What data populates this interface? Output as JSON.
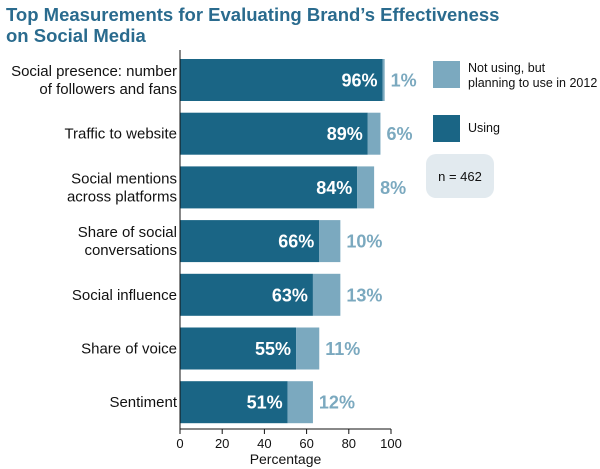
{
  "chart_data": {
    "type": "bar",
    "orientation": "horizontal",
    "stacked": true,
    "title_lines": [
      "Top Measurements for Evaluating Brand’s Effectiveness",
      "on Social Media"
    ],
    "categories": [
      [
        "Social presence: number",
        "of followers and fans"
      ],
      [
        "Traffic to website"
      ],
      [
        "Social mentions",
        "across platforms"
      ],
      [
        "Share of social",
        "conversations"
      ],
      [
        "Social influence"
      ],
      [
        "Share of voice"
      ],
      [
        "Sentiment"
      ]
    ],
    "series": [
      {
        "name": "Using",
        "values": [
          96,
          89,
          84,
          66,
          63,
          55,
          51
        ],
        "color": "#1a6585"
      },
      {
        "name_lines": [
          "Not using, but",
          "planning to use in 2012"
        ],
        "values": [
          1,
          6,
          8,
          10,
          13,
          11,
          12
        ],
        "color": "#7ba9bf"
      }
    ],
    "value_labels_inside": [
      "96%",
      "89%",
      "84%",
      "66%",
      "63%",
      "55%",
      "51%"
    ],
    "value_labels_outside": [
      "1%",
      "6%",
      "8%",
      "10%",
      "13%",
      "11%",
      "12%"
    ],
    "xlabel": "Percentage",
    "xlim": [
      0,
      100
    ],
    "xticks": [
      0,
      20,
      40,
      60,
      80,
      100
    ],
    "legend_position": "right",
    "note": "n = 462",
    "colors": {
      "title": "#2a6b8e",
      "outside_label": "#7ba9bf",
      "note_box": "#e2eaef"
    }
  }
}
